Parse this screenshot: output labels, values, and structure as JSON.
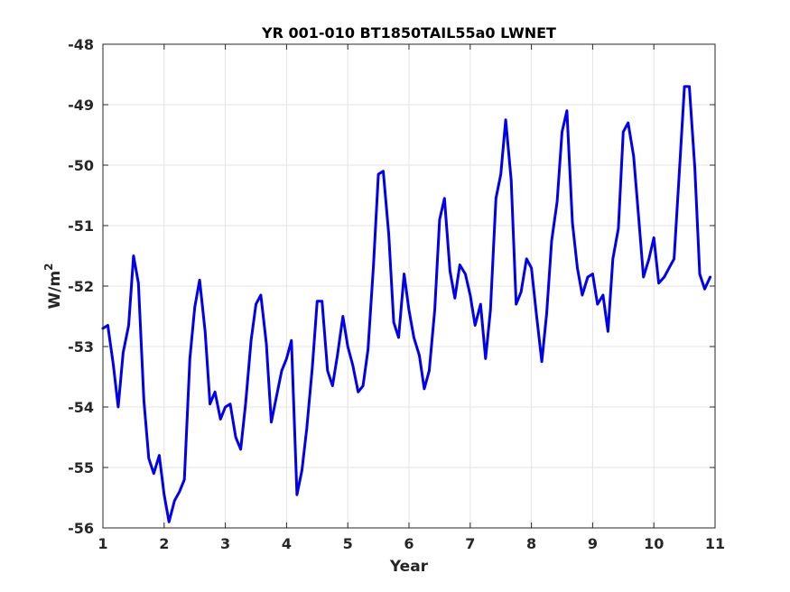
{
  "chart_data": {
    "type": "line",
    "title": "YR 001-010 BT1850TAIL55a0 LWNET",
    "xlabel": "Year",
    "ylabel_base": "W/m",
    "ylabel_sup": "2",
    "xlim": [
      1,
      11
    ],
    "ylim": [
      -56,
      -48
    ],
    "xticks": [
      1,
      2,
      3,
      4,
      5,
      6,
      7,
      8,
      9,
      10,
      11
    ],
    "yticks": [
      -56,
      -55,
      -54,
      -53,
      -52,
      -51,
      -50,
      -49,
      -48
    ],
    "grid": true,
    "line_color": "#0000ee",
    "series": [
      {
        "x": [
          1.0,
          1.08,
          1.17,
          1.25,
          1.33,
          1.42,
          1.5,
          1.58,
          1.67,
          1.75,
          1.83,
          1.92,
          2.0,
          2.08,
          2.17,
          2.25,
          2.33,
          2.42,
          2.5,
          2.58,
          2.67,
          2.75,
          2.83,
          2.92,
          3.0,
          3.08,
          3.17,
          3.25,
          3.33,
          3.42,
          3.5,
          3.58,
          3.67,
          3.75,
          3.83,
          3.92,
          4.0,
          4.08,
          4.17,
          4.25,
          4.33,
          4.42,
          4.5,
          4.58,
          4.67,
          4.75,
          4.83,
          4.92,
          5.0,
          5.08,
          5.17,
          5.25,
          5.33,
          5.42,
          5.5,
          5.58,
          5.67,
          5.75,
          5.83,
          5.92,
          6.0,
          6.08,
          6.17,
          6.25,
          6.33,
          6.42,
          6.5,
          6.58,
          6.67,
          6.75,
          6.83,
          6.92,
          7.0,
          7.08,
          7.17,
          7.25,
          7.33,
          7.42,
          7.5,
          7.58,
          7.67,
          7.75,
          7.83,
          7.92,
          8.0,
          8.08,
          8.17,
          8.25,
          8.33,
          8.42,
          8.5,
          8.58,
          8.67,
          8.75,
          8.83,
          8.92,
          9.0,
          9.08,
          9.17,
          9.25,
          9.33,
          9.42,
          9.5,
          9.58,
          9.67,
          9.75,
          9.83,
          9.92,
          10.0,
          10.08,
          10.17,
          10.25,
          10.33,
          10.42,
          10.5,
          10.58,
          10.67,
          10.75,
          10.83,
          10.92
        ],
        "y": [
          -52.7,
          -52.65,
          -53.3,
          -54.0,
          -53.1,
          -52.65,
          -51.5,
          -51.95,
          -53.9,
          -54.85,
          -55.1,
          -54.8,
          -55.45,
          -55.9,
          -55.55,
          -55.4,
          -55.2,
          -53.2,
          -52.35,
          -51.9,
          -52.75,
          -53.95,
          -53.75,
          -54.2,
          -54.0,
          -53.95,
          -54.5,
          -54.7,
          -53.95,
          -52.9,
          -52.3,
          -52.15,
          -52.95,
          -54.25,
          -53.85,
          -53.4,
          -53.2,
          -52.9,
          -55.45,
          -55.05,
          -54.35,
          -53.35,
          -52.25,
          -52.25,
          -53.4,
          -53.65,
          -53.15,
          -52.5,
          -53.0,
          -53.3,
          -53.75,
          -53.65,
          -53.05,
          -51.65,
          -50.15,
          -50.1,
          -51.15,
          -52.6,
          -52.85,
          -51.8,
          -52.4,
          -52.85,
          -53.15,
          -53.7,
          -53.4,
          -52.4,
          -50.9,
          -50.55,
          -51.75,
          -52.2,
          -51.65,
          -51.8,
          -52.15,
          -52.65,
          -52.3,
          -53.2,
          -52.4,
          -50.55,
          -50.15,
          -49.25,
          -50.25,
          -52.3,
          -52.1,
          -51.55,
          -51.7,
          -52.45,
          -53.25,
          -52.45,
          -51.25,
          -50.6,
          -49.45,
          -49.1,
          -50.95,
          -51.7,
          -52.15,
          -51.85,
          -51.8,
          -52.3,
          -52.15,
          -52.75,
          -51.55,
          -51.05,
          -49.45,
          -49.3,
          -49.85,
          -50.85,
          -51.85,
          -51.55,
          -51.2,
          -51.95,
          -51.85,
          -51.7,
          -51.55,
          -50.05,
          -48.7,
          -48.7,
          -50.05,
          -51.8,
          -52.05,
          -51.85
        ]
      }
    ]
  }
}
